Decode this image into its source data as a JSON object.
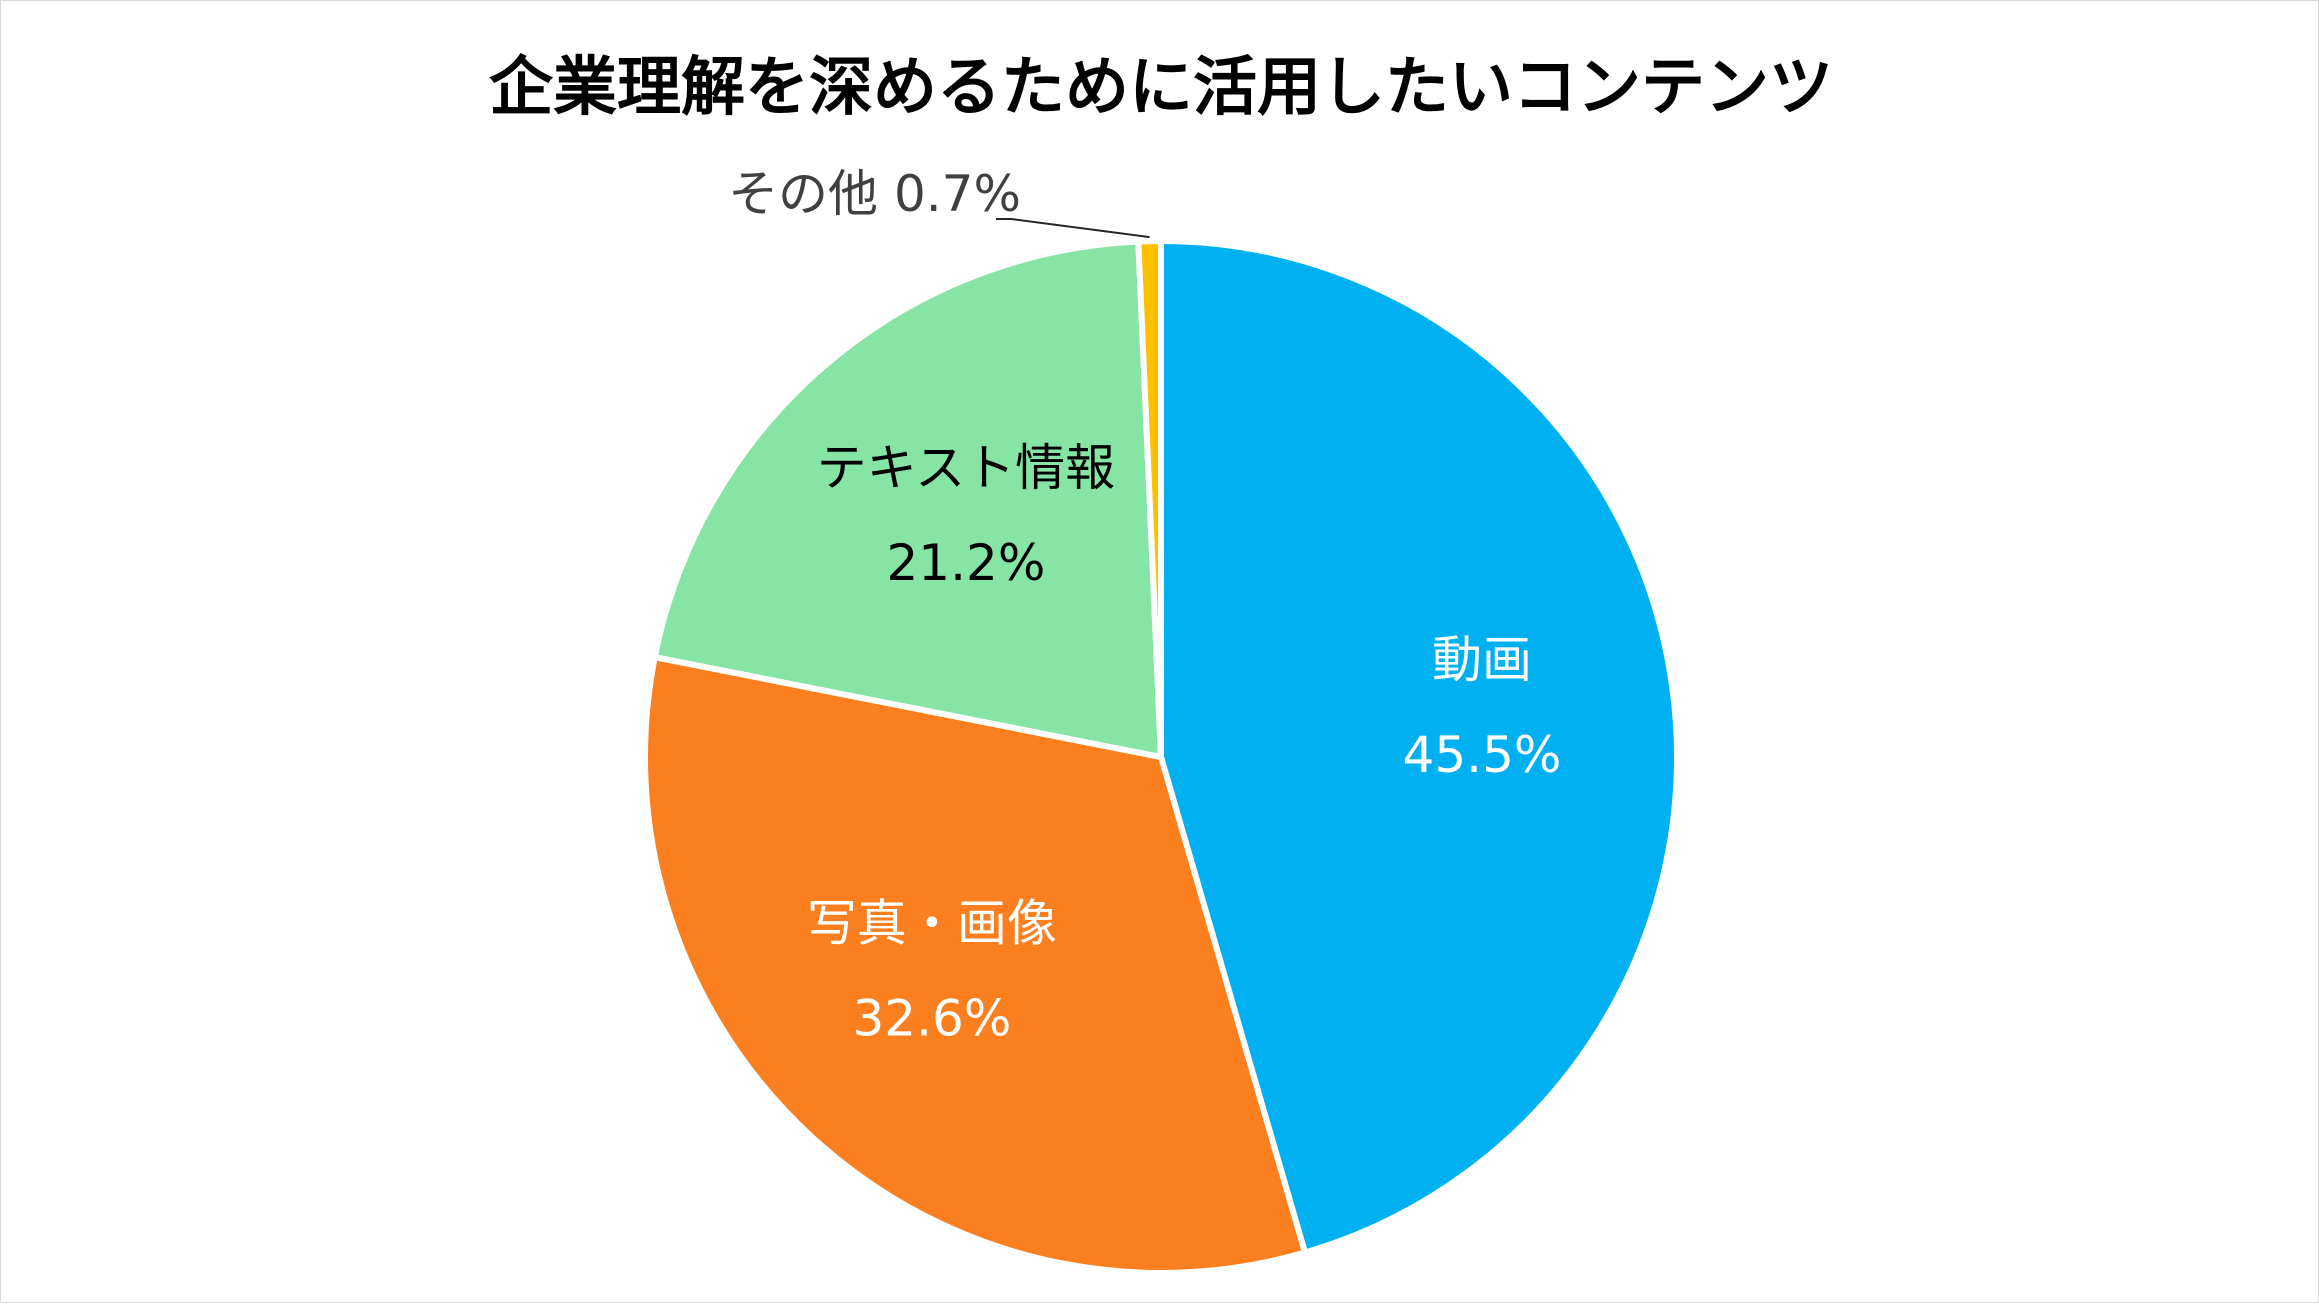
{
  "chart_data": {
    "type": "pie",
    "title": "企業理解を深めるために活用したいコンテンツ",
    "slices": [
      {
        "label": "動画",
        "value": 45.5,
        "value_label": "45.5%",
        "color": "#00b0f0",
        "label_color": "#ffffff"
      },
      {
        "label": "写真・画像",
        "value": 32.6,
        "value_label": "32.6%",
        "color": "#fb7f1f",
        "label_color": "#ffffff"
      },
      {
        "label": "テキスト情報",
        "value": 21.2,
        "value_label": "21.2%",
        "color": "#86e5a4",
        "label_color": "#000000"
      },
      {
        "label": "その他",
        "value": 0.7,
        "value_label": "0.7%",
        "color": "#ffc000",
        "label_color": "#404040"
      }
    ],
    "start_angle": "12 o'clock",
    "direction": "clockwise",
    "legend": "none"
  }
}
